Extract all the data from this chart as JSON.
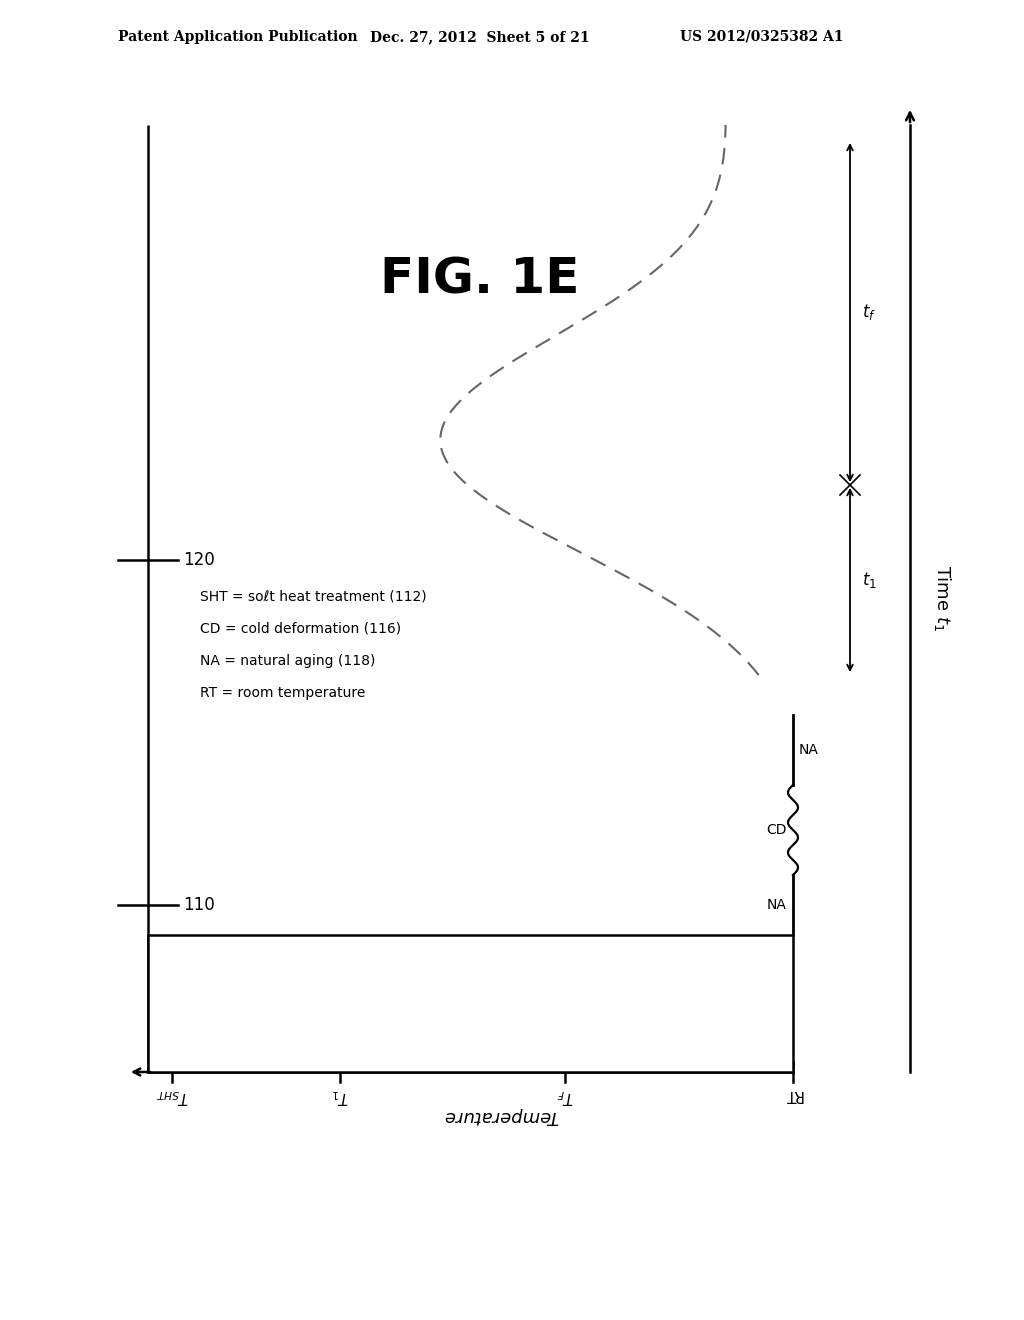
{
  "header_left": "Patent Application Publication",
  "header_mid": "Dec. 27, 2012  Sheet 5 of 21",
  "header_right": "US 2012/0325382 A1",
  "fig_label": "FIG. 1E",
  "legend_lines": [
    "SHT = soℓt heat treatment (112)",
    "CD = cold deformation (116)",
    "NA = natural aging (118)",
    "RT = room temperature"
  ],
  "label_110": "110",
  "label_120": "120",
  "bg_color": "#ffffff",
  "line_color": "#000000",
  "dashed_color": "#666666"
}
